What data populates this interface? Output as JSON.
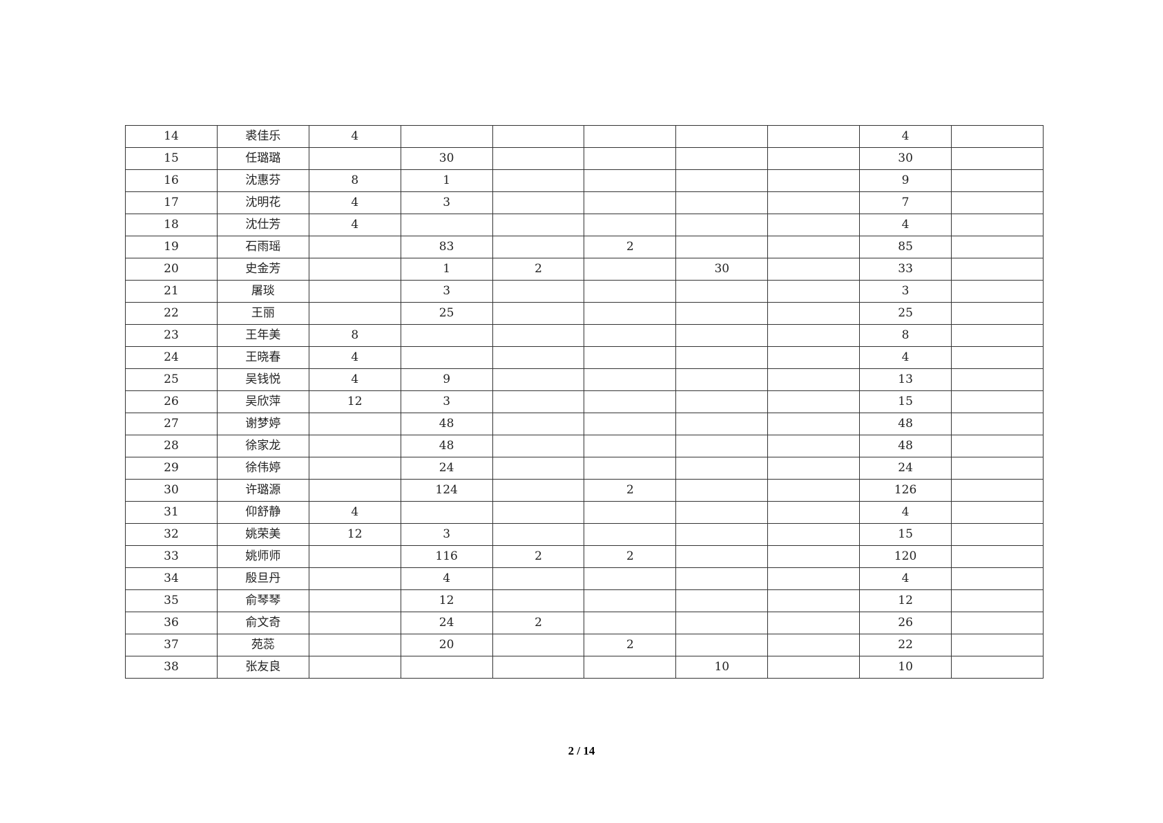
{
  "table": {
    "rows": [
      [
        "14",
        "裘佳乐",
        "4",
        "",
        "",
        "",
        "",
        "",
        "4",
        ""
      ],
      [
        "15",
        "任璐璐",
        "",
        "30",
        "",
        "",
        "",
        "",
        "30",
        ""
      ],
      [
        "16",
        "沈惠芬",
        "8",
        "1",
        "",
        "",
        "",
        "",
        "9",
        ""
      ],
      [
        "17",
        "沈明花",
        "4",
        "3",
        "",
        "",
        "",
        "",
        "7",
        ""
      ],
      [
        "18",
        "沈仕芳",
        "4",
        "",
        "",
        "",
        "",
        "",
        "4",
        ""
      ],
      [
        "19",
        "石雨瑶",
        "",
        "83",
        "",
        "2",
        "",
        "",
        "85",
        ""
      ],
      [
        "20",
        "史金芳",
        "",
        "1",
        "2",
        "",
        "30",
        "",
        "33",
        ""
      ],
      [
        "21",
        "屠琰",
        "",
        "3",
        "",
        "",
        "",
        "",
        "3",
        ""
      ],
      [
        "22",
        "王丽",
        "",
        "25",
        "",
        "",
        "",
        "",
        "25",
        ""
      ],
      [
        "23",
        "王年美",
        "8",
        "",
        "",
        "",
        "",
        "",
        "8",
        ""
      ],
      [
        "24",
        "王晓春",
        "4",
        "",
        "",
        "",
        "",
        "",
        "4",
        ""
      ],
      [
        "25",
        "吴钱悦",
        "4",
        "9",
        "",
        "",
        "",
        "",
        "13",
        ""
      ],
      [
        "26",
        "吴欣萍",
        "12",
        "3",
        "",
        "",
        "",
        "",
        "15",
        ""
      ],
      [
        "27",
        "谢梦婷",
        "",
        "48",
        "",
        "",
        "",
        "",
        "48",
        ""
      ],
      [
        "28",
        "徐家龙",
        "",
        "48",
        "",
        "",
        "",
        "",
        "48",
        ""
      ],
      [
        "29",
        "徐伟婷",
        "",
        "24",
        "",
        "",
        "",
        "",
        "24",
        ""
      ],
      [
        "30",
        "许璐源",
        "",
        "124",
        "",
        "2",
        "",
        "",
        "126",
        ""
      ],
      [
        "31",
        "仰舒静",
        "4",
        "",
        "",
        "",
        "",
        "",
        "4",
        ""
      ],
      [
        "32",
        "姚荣美",
        "12",
        "3",
        "",
        "",
        "",
        "",
        "15",
        ""
      ],
      [
        "33",
        "姚师师",
        "",
        "116",
        "2",
        "2",
        "",
        "",
        "120",
        ""
      ],
      [
        "34",
        "殷旦丹",
        "",
        "4",
        "",
        "",
        "",
        "",
        "4",
        ""
      ],
      [
        "35",
        "俞琴琴",
        "",
        "12",
        "",
        "",
        "",
        "",
        "12",
        ""
      ],
      [
        "36",
        "俞文奇",
        "",
        "24",
        "2",
        "",
        "",
        "",
        "26",
        ""
      ],
      [
        "37",
        "苑蕊",
        "",
        "20",
        "",
        "2",
        "",
        "",
        "22",
        ""
      ],
      [
        "38",
        "张友良",
        "",
        "",
        "",
        "",
        "10",
        "",
        "10",
        ""
      ]
    ]
  },
  "footer": {
    "page_number": "2 / 14"
  }
}
